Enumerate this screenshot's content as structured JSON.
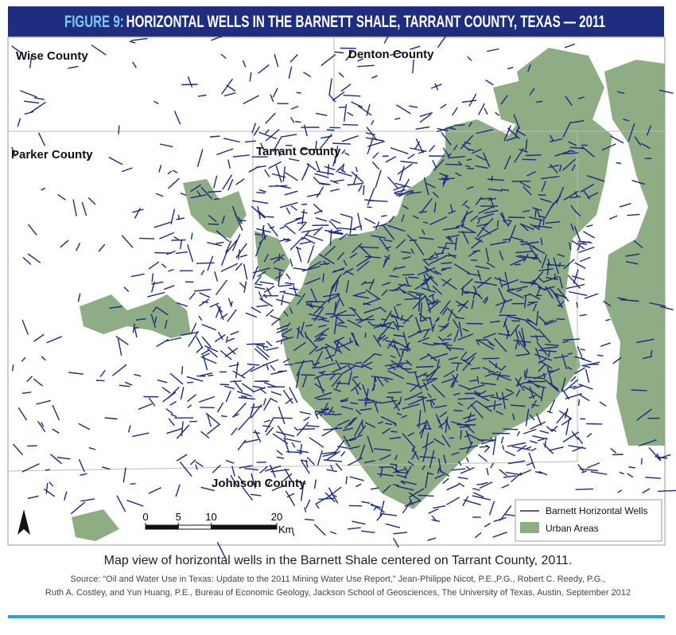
{
  "title": {
    "label": "FIGURE 9:",
    "text": "HORIZONTAL WELLS IN THE BARNETT SHALE, TARRANT COUNTY, TEXAS — 2011"
  },
  "map": {
    "county_labels": [
      "Wise County",
      "Denton County",
      "Parker County",
      "Tarrant County",
      "Johnson County"
    ],
    "legend": [
      "Barnett Horizontal Wells",
      "Urban Areas"
    ],
    "scale_bar": {
      "ticks": [
        0,
        5,
        10,
        20
      ],
      "unit": "Km"
    }
  },
  "caption": "Map view of horizontal wells in the Barnett Shale centered on Tarrant County, 2011.",
  "source": [
    "Source: “Oil and Water Use in Texas: Update to the 2011 Mining Water Use Report,” Jean-Philippe Nicot, P.E.,P.G., Robert C. Reedy, P.G.,",
    "Ruth A. Costley, and Yun Huang, P.E., Bureau of Economic Geology, Jackson School of Geosciences, The University of Texas, Austin, September 2012"
  ]
}
